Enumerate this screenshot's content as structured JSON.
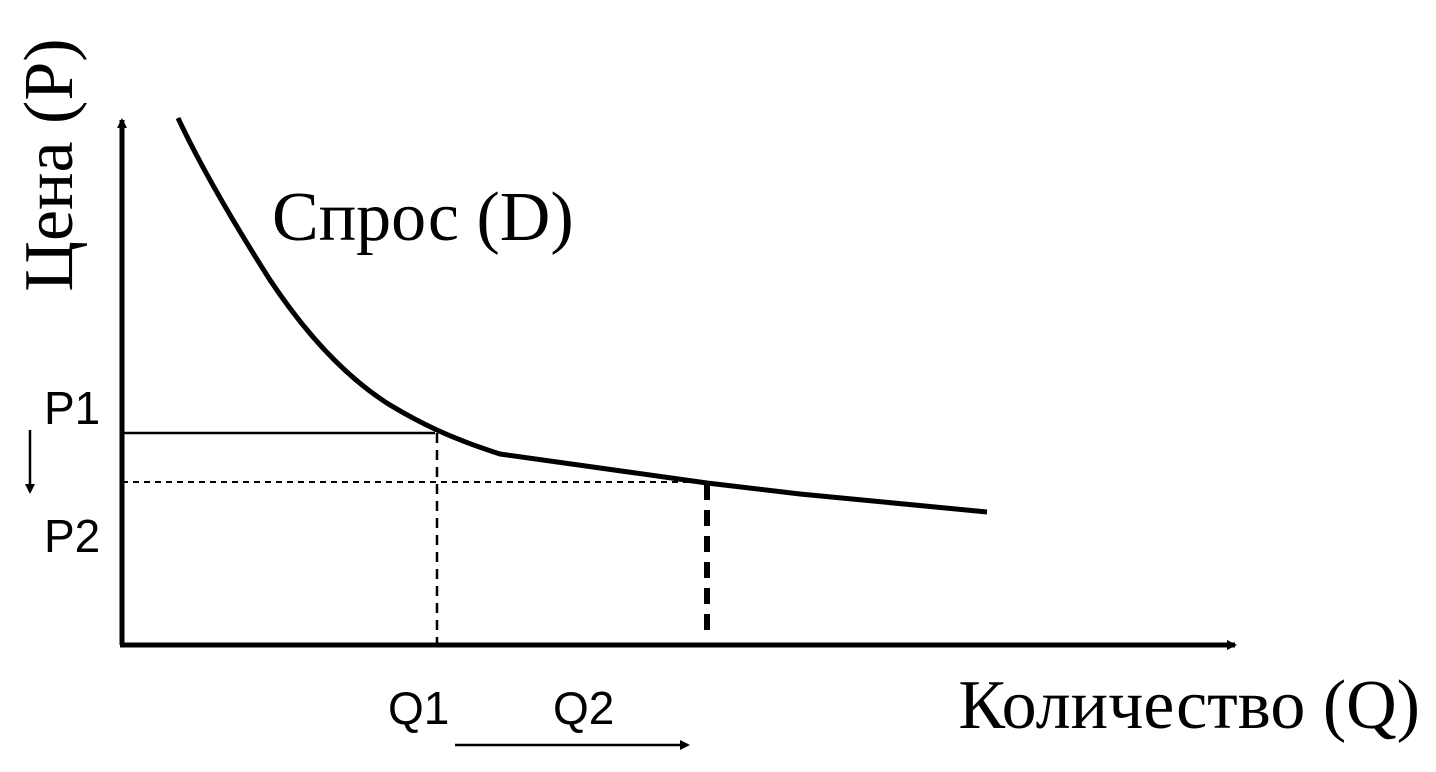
{
  "diagram": {
    "y_axis_label": "Цена (P)",
    "x_axis_label": "Количество (Q)",
    "curve_label": "Спрос (D)",
    "price_labels": [
      "P1",
      "P2"
    ],
    "quantity_labels": [
      "Q1",
      "Q2"
    ]
  }
}
